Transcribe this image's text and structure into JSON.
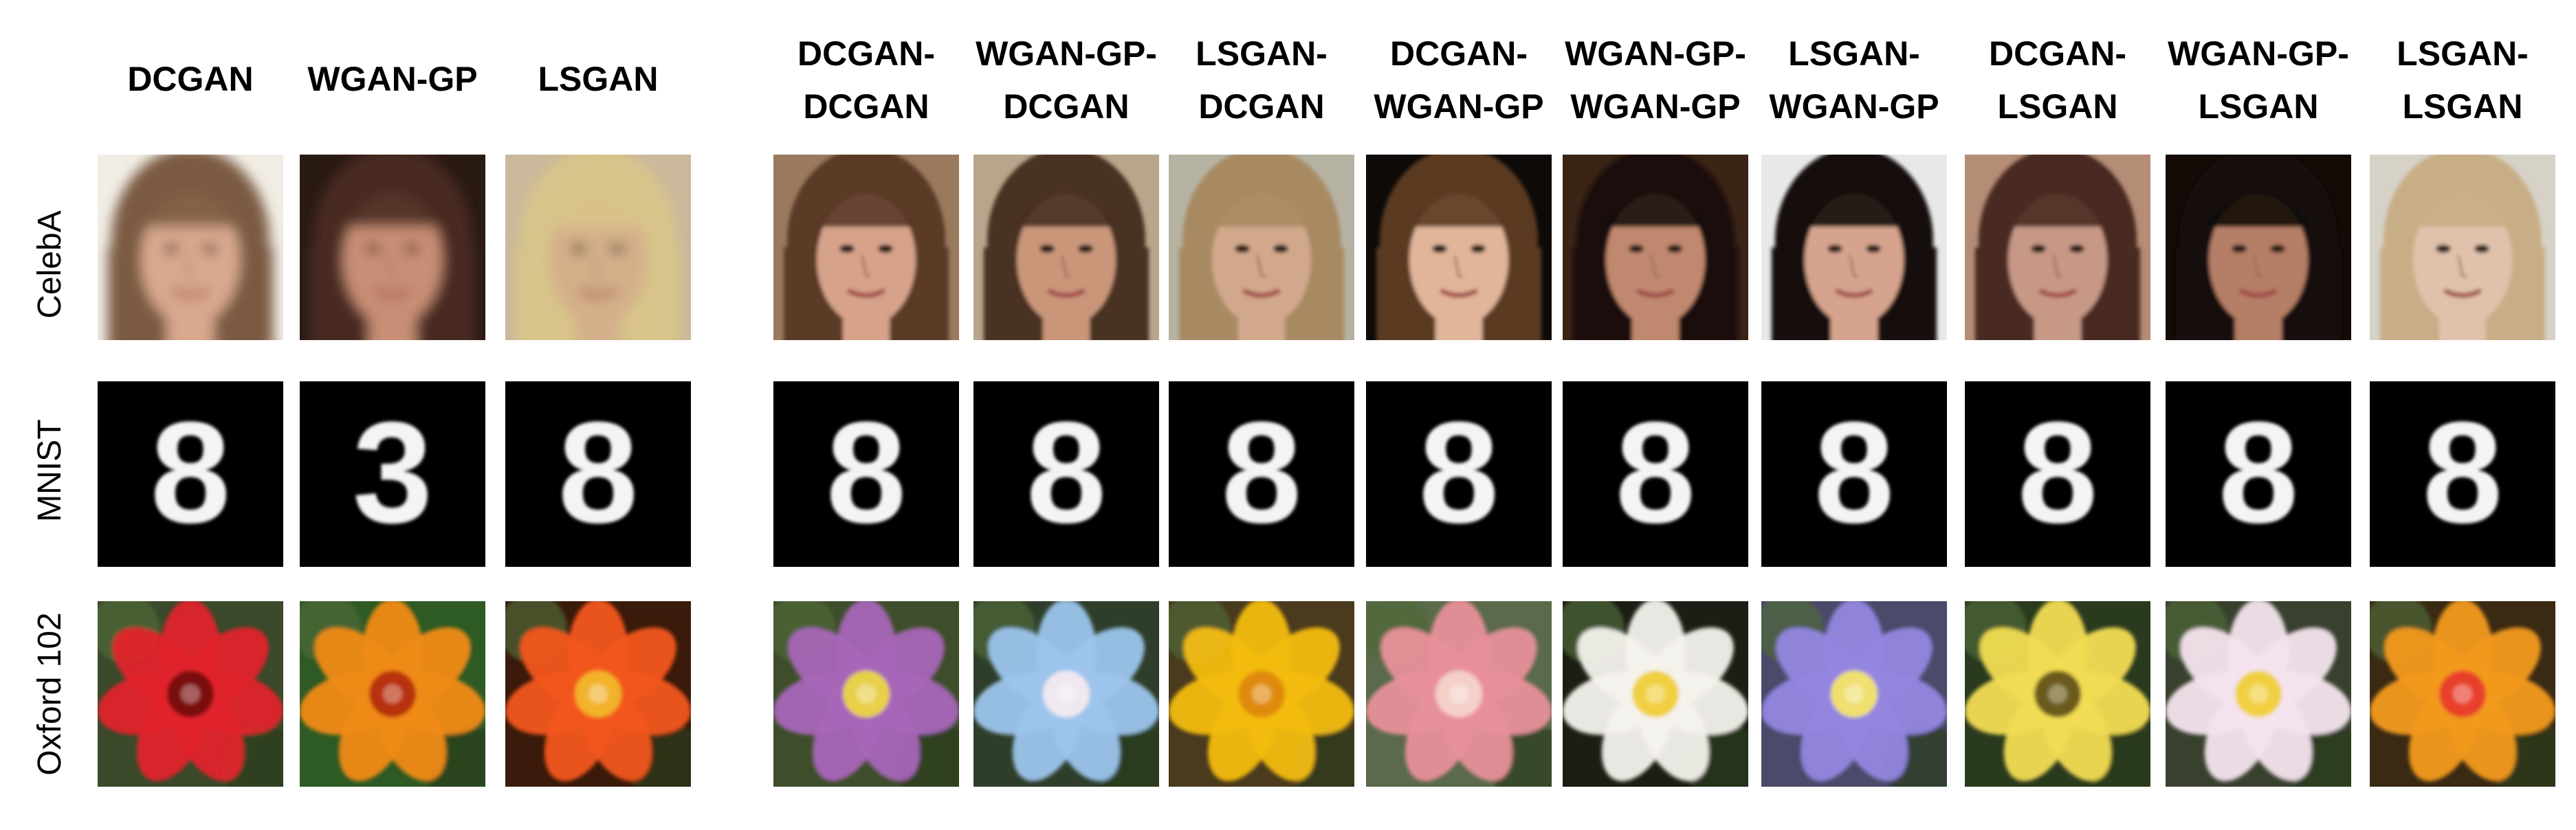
{
  "figure": {
    "columns": [
      {
        "group": "single",
        "lines": [
          "DCGAN"
        ],
        "label": "DCGAN"
      },
      {
        "group": "single",
        "lines": [
          "WGAN-GP"
        ],
        "label": "WGAN-GP"
      },
      {
        "group": "single",
        "lines": [
          "LSGAN"
        ],
        "label": "LSGAN"
      },
      {
        "group": "paired",
        "lines": [
          "DCGAN-",
          "DCGAN"
        ],
        "label": "DCGAN-DCGAN"
      },
      {
        "group": "paired",
        "lines": [
          "WGAN-GP-",
          "DCGAN"
        ],
        "label": "WGAN-GP-DCGAN"
      },
      {
        "group": "paired",
        "lines": [
          "LSGAN-",
          "DCGAN"
        ],
        "label": "LSGAN-DCGAN"
      },
      {
        "group": "paired",
        "lines": [
          "DCGAN-",
          "WGAN-GP"
        ],
        "label": "DCGAN-WGAN-GP"
      },
      {
        "group": "paired",
        "lines": [
          "WGAN-GP-",
          "WGAN-GP"
        ],
        "label": "WGAN-GP-WGAN-GP"
      },
      {
        "group": "paired",
        "lines": [
          "LSGAN-",
          "WGAN-GP"
        ],
        "label": "LSGAN-WGAN-GP"
      },
      {
        "group": "paired",
        "lines": [
          "DCGAN-",
          "LSGAN"
        ],
        "label": "DCGAN-LSGAN"
      },
      {
        "group": "paired",
        "lines": [
          "WGAN-GP-",
          "LSGAN"
        ],
        "label": "WGAN-GP-LSGAN"
      },
      {
        "group": "paired",
        "lines": [
          "LSGAN-",
          "LSGAN"
        ],
        "label": "LSGAN-LSGAN"
      }
    ],
    "rows": [
      {
        "label": "CelebA",
        "kind": "face"
      },
      {
        "label": "MNIST",
        "kind": "digit"
      },
      {
        "label": "Oxford 102",
        "kind": "flower"
      }
    ],
    "samples": {
      "celeba": [
        {
          "skin": "#d9a98e",
          "hair": "#7a5a42",
          "bg": "#f2eee6",
          "quality": 0.15
        },
        {
          "skin": "#c98f76",
          "hair": "#4a2a22",
          "bg": "#2a1a14",
          "quality": 0.3
        },
        {
          "skin": "#d4b08a",
          "hair": "#d8c48a",
          "bg": "#c9b89c",
          "quality": 0.1
        },
        {
          "skin": "#d6a28a",
          "hair": "#5a3a26",
          "bg": "#9a7a5e",
          "quality": 0.85
        },
        {
          "skin": "#c9967a",
          "hair": "#4a3020",
          "bg": "#b7a68c",
          "quality": 0.9
        },
        {
          "skin": "#d2a88c",
          "hair": "#a88a62",
          "bg": "#b6b2a2",
          "quality": 0.8
        },
        {
          "skin": "#e1b59a",
          "hair": "#5a3a22",
          "bg": "#0e0a08",
          "quality": 0.95
        },
        {
          "skin": "#c0886e",
          "hair": "#1a0e0a",
          "bg": "#3a2416",
          "quality": 0.85
        },
        {
          "skin": "#d6a48e",
          "hair": "#140e0c",
          "bg": "#e8e8e8",
          "quality": 0.9
        },
        {
          "skin": "#c89886",
          "hair": "#4a2a20",
          "bg": "#b58c76",
          "quality": 0.7
        },
        {
          "skin": "#b57e66",
          "hair": "#120a08",
          "bg": "#140a06",
          "quality": 0.8
        },
        {
          "skin": "#e0c2ac",
          "hair": "#c8ae86",
          "bg": "#d6d2c8",
          "quality": 0.75
        }
      ],
      "mnist_digits": [
        "8",
        "3",
        "8",
        "8",
        "8",
        "8",
        "8",
        "8",
        "8",
        "8",
        "8",
        "8"
      ],
      "flowers": [
        {
          "petal": "#e0242a",
          "center": "#7a0a0a",
          "bg": "#3a4a2a"
        },
        {
          "petal": "#f08a18",
          "center": "#b8300a",
          "bg": "#2e5a24"
        },
        {
          "petal": "#f2561a",
          "center": "#f2b22a",
          "bg": "#3a1a0a"
        },
        {
          "petal": "#a866b8",
          "center": "#e8d04a",
          "bg": "#3e4e2a"
        },
        {
          "petal": "#9cc4ec",
          "center": "#f0e8f0",
          "bg": "#2e3e2a"
        },
        {
          "petal": "#f2bc12",
          "center": "#e08a0a",
          "bg": "#4a3a1e"
        },
        {
          "petal": "#e8909a",
          "center": "#f4d0c8",
          "bg": "#5a6a4a"
        },
        {
          "petal": "#f4f2ec",
          "center": "#f0d040",
          "bg": "#1a1e14"
        },
        {
          "petal": "#9486e0",
          "center": "#f0e070",
          "bg": "#4a4a6a"
        },
        {
          "petal": "#f2dc52",
          "center": "#6a5a1a",
          "bg": "#2a3a1e"
        },
        {
          "petal": "#f4e4ee",
          "center": "#f0d040",
          "bg": "#38402e"
        },
        {
          "petal": "#f29a1a",
          "center": "#e8402a",
          "bg": "#3a2a14"
        }
      ]
    }
  }
}
